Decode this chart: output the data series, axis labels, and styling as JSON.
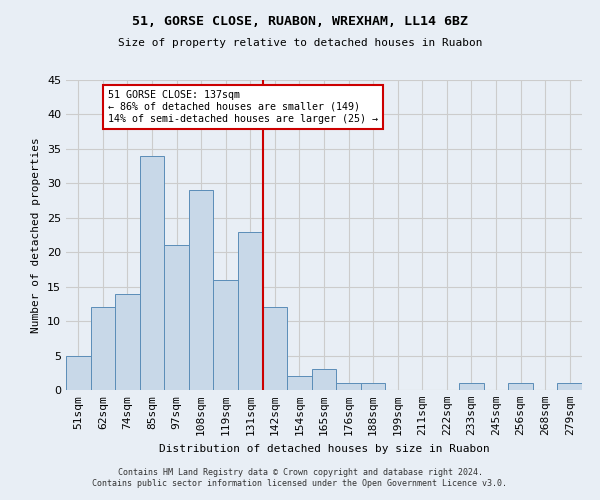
{
  "title1": "51, GORSE CLOSE, RUABON, WREXHAM, LL14 6BZ",
  "title2": "Size of property relative to detached houses in Ruabon",
  "xlabel": "Distribution of detached houses by size in Ruabon",
  "ylabel": "Number of detached properties",
  "categories": [
    "51sqm",
    "62sqm",
    "74sqm",
    "85sqm",
    "97sqm",
    "108sqm",
    "119sqm",
    "131sqm",
    "142sqm",
    "154sqm",
    "165sqm",
    "176sqm",
    "188sqm",
    "199sqm",
    "211sqm",
    "222sqm",
    "233sqm",
    "245sqm",
    "256sqm",
    "268sqm",
    "279sqm"
  ],
  "values": [
    5,
    12,
    14,
    34,
    21,
    29,
    16,
    23,
    12,
    2,
    3,
    1,
    1,
    0,
    0,
    0,
    1,
    0,
    1,
    0,
    1
  ],
  "bar_color": "#c8d8e8",
  "bar_edgecolor": "#5b8db8",
  "vline_x": 8.0,
  "vline_color": "#cc0000",
  "ylim": [
    0,
    45
  ],
  "yticks": [
    0,
    5,
    10,
    15,
    20,
    25,
    30,
    35,
    40,
    45
  ],
  "annotation_title": "51 GORSE CLOSE: 137sqm",
  "annotation_line1": "← 86% of detached houses are smaller (149)",
  "annotation_line2": "14% of semi-detached houses are larger (25) →",
  "annotation_box_color": "#ffffff",
  "annotation_box_edgecolor": "#cc0000",
  "grid_color": "#cccccc",
  "bg_color": "#e8eef5",
  "footer1": "Contains HM Land Registry data © Crown copyright and database right 2024.",
  "footer2": "Contains public sector information licensed under the Open Government Licence v3.0."
}
